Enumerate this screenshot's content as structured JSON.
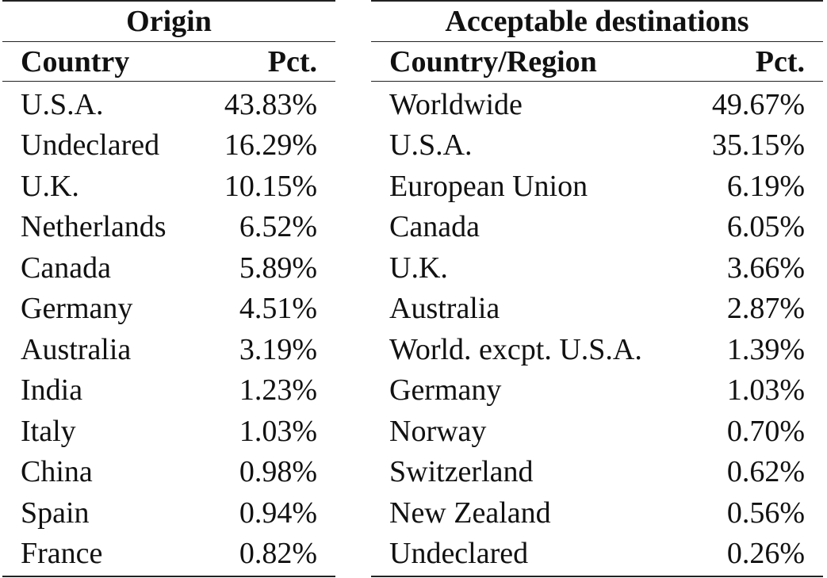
{
  "origin": {
    "title": "Origin",
    "headers": {
      "country": "Country",
      "pct": "Pct."
    },
    "rows": [
      {
        "country": "U.S.A.",
        "pct": "43.83%"
      },
      {
        "country": "Undeclared",
        "pct": "16.29%"
      },
      {
        "country": "U.K.",
        "pct": "10.15%"
      },
      {
        "country": "Netherlands",
        "pct": "6.52%"
      },
      {
        "country": "Canada",
        "pct": "5.89%"
      },
      {
        "country": "Germany",
        "pct": "4.51%"
      },
      {
        "country": "Australia",
        "pct": "3.19%"
      },
      {
        "country": "India",
        "pct": "1.23%"
      },
      {
        "country": "Italy",
        "pct": "1.03%"
      },
      {
        "country": "China",
        "pct": "0.98%"
      },
      {
        "country": "Spain",
        "pct": "0.94%"
      },
      {
        "country": "France",
        "pct": "0.82%"
      }
    ]
  },
  "destinations": {
    "title": "Acceptable destinations",
    "headers": {
      "country": "Country/Region",
      "pct": "Pct."
    },
    "rows": [
      {
        "country": "Worldwide",
        "pct": "49.67%"
      },
      {
        "country": "U.S.A.",
        "pct": "35.15%"
      },
      {
        "country": "European Union",
        "pct": "6.19%"
      },
      {
        "country": "Canada",
        "pct": "6.05%"
      },
      {
        "country": "U.K.",
        "pct": "3.66%"
      },
      {
        "country": "Australia",
        "pct": "2.87%"
      },
      {
        "country": "World. excpt. U.S.A.",
        "pct": "1.39%"
      },
      {
        "country": "Germany",
        "pct": "1.03%"
      },
      {
        "country": "Norway",
        "pct": "0.70%"
      },
      {
        "country": "Switzerland",
        "pct": "0.62%"
      },
      {
        "country": "New Zealand",
        "pct": "0.56%"
      },
      {
        "country": "Undeclared",
        "pct": "0.26%"
      }
    ]
  }
}
